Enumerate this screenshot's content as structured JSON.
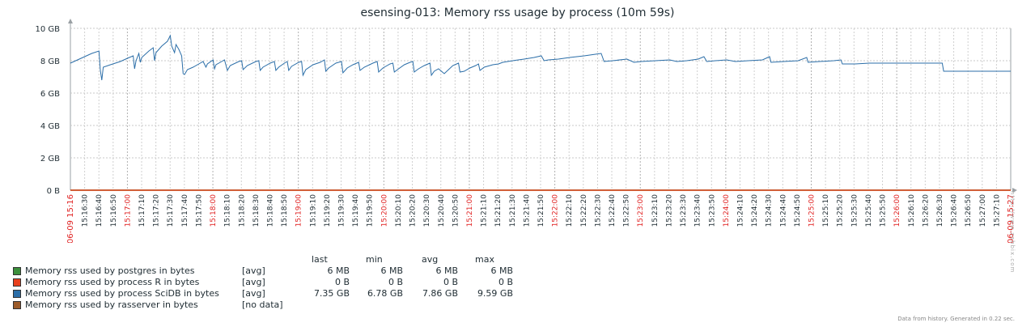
{
  "chart_data": {
    "type": "line",
    "title": "esensing-013: Memory rss usage by process (10m 59s)",
    "y_ticks": [
      "10 GB",
      "8 GB",
      "6 GB",
      "4 GB",
      "2 GB",
      "0 B"
    ],
    "y_range_gb": [
      0,
      10
    ],
    "x_ticks": [
      "06-09 15:16",
      "15:16:30",
      "15:16:40",
      "15:16:50",
      "15:17:00",
      "15:17:10",
      "15:17:20",
      "15:17:30",
      "15:17:40",
      "15:17:50",
      "15:18:00",
      "15:18:10",
      "15:18:20",
      "15:18:30",
      "15:18:40",
      "15:18:50",
      "15:19:00",
      "15:19:10",
      "15:19:20",
      "15:19:30",
      "15:19:40",
      "15:19:50",
      "15:20:00",
      "15:20:10",
      "15:20:20",
      "15:20:30",
      "15:20:40",
      "15:20:50",
      "15:21:00",
      "15:21:10",
      "15:21:20",
      "15:21:30",
      "15:21:40",
      "15:21:50",
      "15:22:00",
      "15:22:10",
      "15:22:20",
      "15:22:30",
      "15:22:40",
      "15:22:50",
      "15:23:00",
      "15:23:10",
      "15:23:20",
      "15:23:30",
      "15:23:40",
      "15:23:50",
      "15:24:00",
      "15:24:10",
      "15:24:20",
      "15:24:30",
      "15:24:40",
      "15:24:50",
      "15:25:00",
      "15:25:10",
      "15:25:20",
      "15:25:30",
      "15:25:40",
      "15:25:50",
      "15:26:00",
      "15:26:10",
      "15:26:20",
      "15:26:30",
      "15:26:40",
      "15:26:50",
      "15:27:00",
      "15:27:10",
      "06-09 15:27"
    ],
    "major_ticks": [
      "06-09 15:16",
      "15:17:00",
      "15:18:00",
      "15:19:00",
      "15:20:00",
      "15:21:00",
      "15:22:00",
      "15:23:00",
      "15:24:00",
      "15:25:00",
      "15:26:00",
      "06-09 15:27"
    ],
    "x_range_sec": [
      0,
      659
    ],
    "series": [
      {
        "name": "Memory rss used by postgres in bytes",
        "color": "#3c8f3c",
        "points_sec_gb": [
          [
            0,
            0.006
          ],
          [
            659,
            0.006
          ]
        ]
      },
      {
        "name": "Memory rss used by process R in bytes",
        "color": "#e8401c",
        "points_sec_gb": [
          [
            0,
            0
          ],
          [
            659,
            0
          ]
        ]
      },
      {
        "name": "Memory rss used by process SciDB in bytes",
        "color": "#2b6ea8",
        "points_sec_gb": [
          [
            0,
            7.85
          ],
          [
            5,
            8.05
          ],
          [
            10,
            8.25
          ],
          [
            15,
            8.45
          ],
          [
            20,
            8.6
          ],
          [
            21,
            7.4
          ],
          [
            22,
            6.8
          ],
          [
            23,
            7.6
          ],
          [
            28,
            7.75
          ],
          [
            35,
            7.95
          ],
          [
            40,
            8.15
          ],
          [
            44,
            8.3
          ],
          [
            45,
            7.5
          ],
          [
            46,
            8.0
          ],
          [
            48,
            8.45
          ],
          [
            49,
            7.9
          ],
          [
            50,
            8.2
          ],
          [
            55,
            8.6
          ],
          [
            58,
            8.8
          ],
          [
            59,
            8.0
          ],
          [
            60,
            8.5
          ],
          [
            64,
            8.9
          ],
          [
            68,
            9.2
          ],
          [
            70,
            9.55
          ],
          [
            71,
            8.9
          ],
          [
            73,
            8.5
          ],
          [
            74,
            9.0
          ],
          [
            76,
            8.7
          ],
          [
            78,
            8.3
          ],
          [
            79,
            7.2
          ],
          [
            80,
            7.15
          ],
          [
            82,
            7.45
          ],
          [
            86,
            7.6
          ],
          [
            90,
            7.8
          ],
          [
            93,
            7.95
          ],
          [
            95,
            7.6
          ],
          [
            96,
            7.8
          ],
          [
            100,
            8.05
          ],
          [
            101,
            7.5
          ],
          [
            102,
            7.75
          ],
          [
            106,
            7.95
          ],
          [
            108,
            8.05
          ],
          [
            110,
            7.4
          ],
          [
            112,
            7.7
          ],
          [
            118,
            7.95
          ],
          [
            120,
            8.0
          ],
          [
            121,
            7.45
          ],
          [
            124,
            7.7
          ],
          [
            130,
            7.95
          ],
          [
            132,
            8.0
          ],
          [
            133,
            7.4
          ],
          [
            135,
            7.6
          ],
          [
            140,
            7.85
          ],
          [
            143,
            7.95
          ],
          [
            144,
            7.4
          ],
          [
            146,
            7.6
          ],
          [
            150,
            7.85
          ],
          [
            152,
            7.95
          ],
          [
            153,
            7.4
          ],
          [
            155,
            7.65
          ],
          [
            160,
            7.9
          ],
          [
            162,
            7.95
          ],
          [
            163,
            7.1
          ],
          [
            165,
            7.45
          ],
          [
            170,
            7.75
          ],
          [
            175,
            7.9
          ],
          [
            178,
            8.05
          ],
          [
            179,
            7.35
          ],
          [
            181,
            7.55
          ],
          [
            186,
            7.85
          ],
          [
            190,
            7.95
          ],
          [
            191,
            7.25
          ],
          [
            194,
            7.55
          ],
          [
            198,
            7.75
          ],
          [
            202,
            7.9
          ],
          [
            203,
            7.4
          ],
          [
            206,
            7.6
          ],
          [
            212,
            7.85
          ],
          [
            215,
            7.95
          ],
          [
            216,
            7.3
          ],
          [
            219,
            7.55
          ],
          [
            224,
            7.8
          ],
          [
            226,
            7.85
          ],
          [
            227,
            7.3
          ],
          [
            230,
            7.5
          ],
          [
            234,
            7.75
          ],
          [
            238,
            7.9
          ],
          [
            240,
            7.95
          ],
          [
            241,
            7.3
          ],
          [
            244,
            7.5
          ],
          [
            248,
            7.7
          ],
          [
            252,
            7.85
          ],
          [
            253,
            7.1
          ],
          [
            255,
            7.35
          ],
          [
            258,
            7.5
          ],
          [
            262,
            7.2
          ],
          [
            265,
            7.45
          ],
          [
            268,
            7.7
          ],
          [
            272,
            7.85
          ],
          [
            273,
            7.3
          ],
          [
            276,
            7.35
          ],
          [
            280,
            7.55
          ],
          [
            284,
            7.7
          ],
          [
            286,
            7.8
          ],
          [
            287,
            7.4
          ],
          [
            290,
            7.6
          ],
          [
            296,
            7.75
          ],
          [
            300,
            7.8
          ],
          [
            303,
            7.9
          ],
          [
            310,
            8.0
          ],
          [
            318,
            8.1
          ],
          [
            325,
            8.2
          ],
          [
            330,
            8.3
          ],
          [
            332,
            8.0
          ],
          [
            335,
            8.05
          ],
          [
            342,
            8.1
          ],
          [
            350,
            8.2
          ],
          [
            360,
            8.3
          ],
          [
            368,
            8.4
          ],
          [
            372,
            8.45
          ],
          [
            374,
            7.95
          ],
          [
            380,
            8.0
          ],
          [
            390,
            8.1
          ],
          [
            395,
            7.9
          ],
          [
            400,
            7.95
          ],
          [
            410,
            8.0
          ],
          [
            420,
            8.05
          ],
          [
            425,
            7.95
          ],
          [
            432,
            8.0
          ],
          [
            440,
            8.1
          ],
          [
            444,
            8.25
          ],
          [
            446,
            7.95
          ],
          [
            452,
            8.0
          ],
          [
            460,
            8.05
          ],
          [
            466,
            7.95
          ],
          [
            475,
            8.0
          ],
          [
            485,
            8.05
          ],
          [
            490,
            8.25
          ],
          [
            491,
            7.9
          ],
          [
            500,
            7.95
          ],
          [
            510,
            8.0
          ],
          [
            516,
            8.2
          ],
          [
            517,
            7.9
          ],
          [
            525,
            7.95
          ],
          [
            535,
            8.0
          ],
          [
            540,
            8.05
          ],
          [
            541,
            7.8
          ],
          [
            550,
            7.8
          ],
          [
            560,
            7.85
          ],
          [
            580,
            7.85
          ],
          [
            600,
            7.85
          ],
          [
            611,
            7.85
          ],
          [
            612,
            7.35
          ],
          [
            625,
            7.35
          ],
          [
            640,
            7.35
          ],
          [
            659,
            7.35
          ]
        ]
      },
      {
        "name": "Memory rss used by rasserver in bytes",
        "color": "#9c5b2a",
        "points_sec_gb": []
      }
    ]
  },
  "legend": {
    "headers": {
      "last": "last",
      "min": "min",
      "avg": "avg",
      "max": "max"
    },
    "rows": [
      {
        "label": "Memory rss used by postgres in bytes",
        "func": "[avg]",
        "last": "6 MB",
        "min": "6 MB",
        "avg": "6 MB",
        "max": "6 MB",
        "color": "#3c8f3c"
      },
      {
        "label": "Memory rss used by process R in bytes",
        "func": "[avg]",
        "last": "0 B",
        "min": "0 B",
        "avg": "0 B",
        "max": "0 B",
        "color": "#e8401c"
      },
      {
        "label": "Memory rss used by process SciDB in bytes",
        "func": "[avg]",
        "last": "7.35 GB",
        "min": "6.78 GB",
        "avg": "7.86 GB",
        "max": "9.59 GB",
        "color": "#2b6ea8"
      },
      {
        "label": "Memory rss used by rasserver in bytes",
        "func": "[no data]",
        "last": "",
        "min": "",
        "avg": "",
        "max": "",
        "color": "#9c5b2a"
      }
    ]
  },
  "footer": "Data from history. Generated in 0.22 sec.",
  "watermark": "http://www.zabbix.com"
}
